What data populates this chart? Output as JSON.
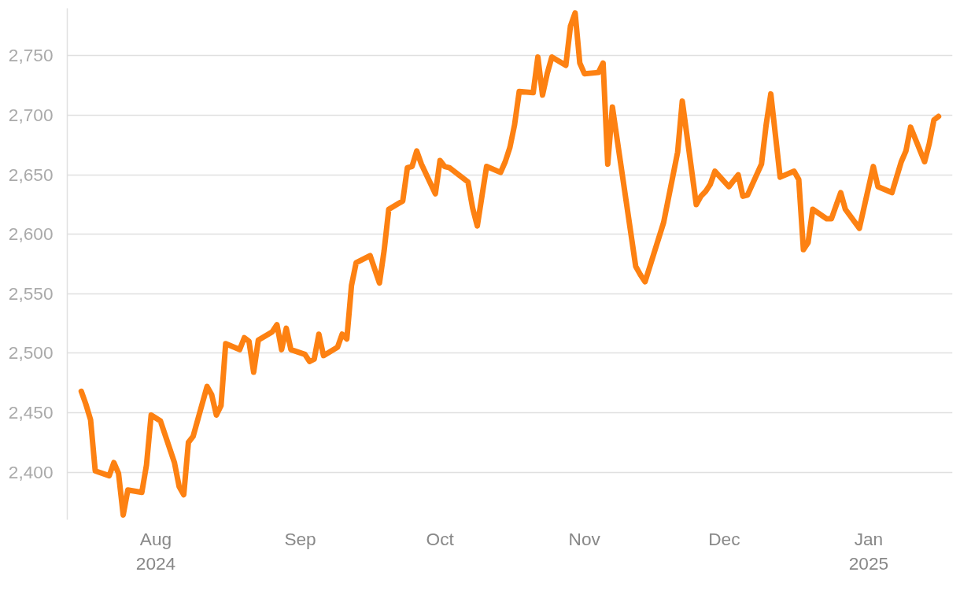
{
  "chart_data": {
    "type": "line",
    "grid": "y",
    "line_style": "solid",
    "marker": "none",
    "xlim": [
      "2024-07-13",
      "2025-01-19"
    ],
    "xticks": [
      {
        "value": "2024-08-01",
        "label": "Aug\n2024"
      },
      {
        "value": "2024-09-01",
        "label": "Sep"
      },
      {
        "value": "2024-10-01",
        "label": "Oct"
      },
      {
        "value": "2024-11-01",
        "label": "Nov"
      },
      {
        "value": "2024-12-01",
        "label": "Dec"
      },
      {
        "value": "2025-01-01",
        "label": "Jan\n2025"
      }
    ],
    "ylim": [
      2360,
      2790
    ],
    "yticks": [
      {
        "value": 2400,
        "label": "2,400"
      },
      {
        "value": 2450,
        "label": "2,450"
      },
      {
        "value": 2500,
        "label": "2,500"
      },
      {
        "value": 2550,
        "label": "2,550"
      },
      {
        "value": 2600,
        "label": "2,600"
      },
      {
        "value": 2650,
        "label": "2,650"
      },
      {
        "value": 2700,
        "label": "2,700"
      },
      {
        "value": 2750,
        "label": "2,750"
      }
    ],
    "x": [
      "2024-07-16",
      "2024-07-17",
      "2024-07-18",
      "2024-07-19",
      "2024-07-22",
      "2024-07-23",
      "2024-07-24",
      "2024-07-25",
      "2024-07-26",
      "2024-07-29",
      "2024-07-30",
      "2024-07-31",
      "2024-08-02",
      "2024-08-05",
      "2024-08-06",
      "2024-08-07",
      "2024-08-08",
      "2024-08-09",
      "2024-08-12",
      "2024-08-13",
      "2024-08-14",
      "2024-08-15",
      "2024-08-16",
      "2024-08-19",
      "2024-08-20",
      "2024-08-21",
      "2024-08-22",
      "2024-08-23",
      "2024-08-26",
      "2024-08-27",
      "2024-08-28",
      "2024-08-29",
      "2024-08-30",
      "2024-09-02",
      "2024-09-03",
      "2024-09-04",
      "2024-09-05",
      "2024-09-06",
      "2024-09-09",
      "2024-09-10",
      "2024-09-11",
      "2024-09-12",
      "2024-09-13",
      "2024-09-16",
      "2024-09-18",
      "2024-09-19",
      "2024-09-20",
      "2024-09-23",
      "2024-09-24",
      "2024-09-25",
      "2024-09-26",
      "2024-09-27",
      "2024-09-30",
      "2024-10-01",
      "2024-10-02",
      "2024-10-03",
      "2024-10-07",
      "2024-10-08",
      "2024-10-09",
      "2024-10-11",
      "2024-10-14",
      "2024-10-15",
      "2024-10-16",
      "2024-10-17",
      "2024-10-18",
      "2024-10-21",
      "2024-10-22",
      "2024-10-23",
      "2024-10-24",
      "2024-10-25",
      "2024-10-28",
      "2024-10-29",
      "2024-10-30",
      "2024-10-31",
      "2024-11-01",
      "2024-11-04",
      "2024-11-05",
      "2024-11-06",
      "2024-11-07",
      "2024-11-12",
      "2024-11-13",
      "2024-11-14",
      "2024-11-18",
      "2024-11-21",
      "2024-11-22",
      "2024-11-25",
      "2024-11-26",
      "2024-11-27",
      "2024-11-28",
      "2024-11-29",
      "2024-12-02",
      "2024-12-04",
      "2024-12-05",
      "2024-12-06",
      "2024-12-09",
      "2024-12-10",
      "2024-12-11",
      "2024-12-13",
      "2024-12-16",
      "2024-12-17",
      "2024-12-18",
      "2024-12-19",
      "2024-12-20",
      "2024-12-23",
      "2024-12-24",
      "2024-12-26",
      "2024-12-27",
      "2024-12-30",
      "2025-01-02",
      "2025-01-03",
      "2025-01-06",
      "2025-01-08",
      "2025-01-09",
      "2025-01-10",
      "2025-01-13",
      "2025-01-14",
      "2025-01-15",
      "2025-01-16"
    ],
    "series": [
      {
        "color": "#fd8112",
        "values": [
          2468,
          2457,
          2444,
          2401,
          2397,
          2408,
          2399,
          2364,
          2385,
          2383,
          2406,
          2448,
          2443,
          2408,
          2388,
          2381,
          2425,
          2430,
          2472,
          2465,
          2448,
          2456,
          2508,
          2503,
          2513,
          2510,
          2484,
          2511,
          2518,
          2524,
          2503,
          2521,
          2503,
          2499,
          2493,
          2495,
          2516,
          2498,
          2505,
          2516,
          2512,
          2557,
          2576,
          2582,
          2559,
          2586,
          2621,
          2628,
          2656,
          2657,
          2670,
          2659,
          2634,
          2662,
          2657,
          2656,
          2644,
          2622,
          2607,
          2657,
          2652,
          2661,
          2673,
          2692,
          2720,
          2719,
          2749,
          2717,
          2735,
          2749,
          2742,
          2775,
          2786,
          2744,
          2735,
          2736,
          2744,
          2659,
          2707,
          2573,
          2566,
          2560,
          2610,
          2669,
          2712,
          2625,
          2632,
          2636,
          2642,
          2653,
          2640,
          2650,
          2632,
          2633,
          2659,
          2692,
          2718,
          2648,
          2653,
          2646,
          2587,
          2593,
          2621,
          2613,
          2613,
          2635,
          2621,
          2605,
          2657,
          2640,
          2635,
          2661,
          2670,
          2690,
          2661,
          2676,
          2696,
          2699
        ]
      }
    ]
  }
}
